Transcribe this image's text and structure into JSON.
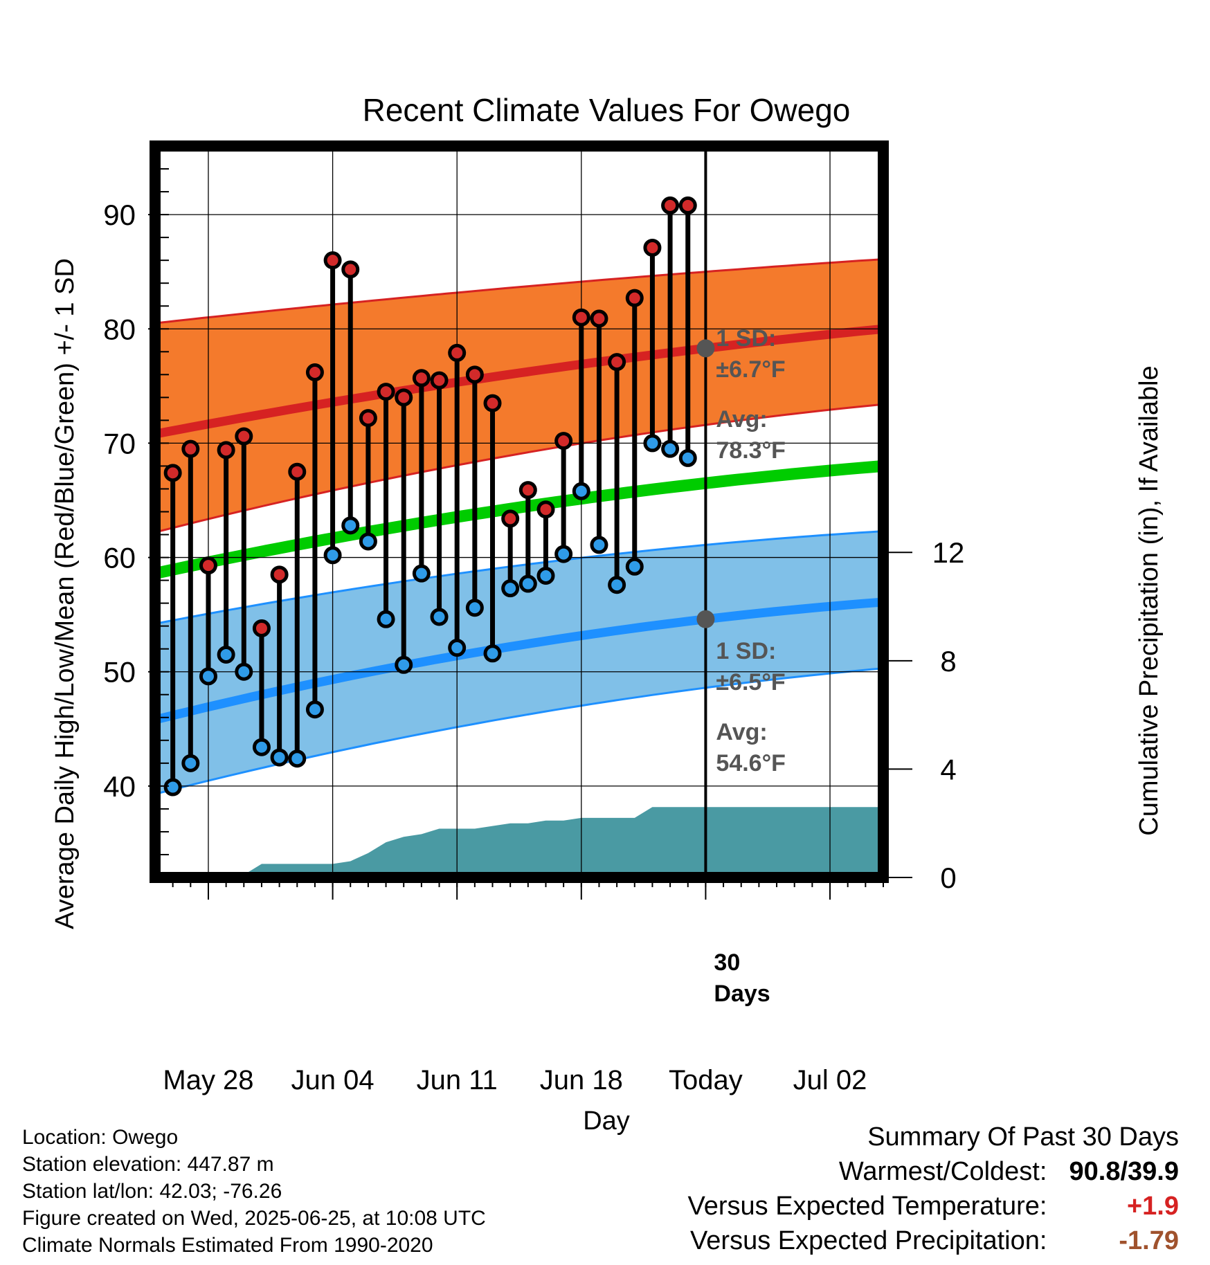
{
  "chart_data": {
    "type": "line",
    "title": "Recent Climate Values For Owego",
    "xlabel": "Day",
    "ylabel": "Average Daily High/Low/Mean (Red/Blue/Green) +/- 1 SD",
    "y2label": "Cumulative Precipitation (in), If Available",
    "ylim": [
      32,
      96
    ],
    "y2lim": [
      0,
      27
    ],
    "y_ticks": [
      "40",
      "50",
      "60",
      "70",
      "80",
      "90"
    ],
    "y2_ticks": [
      "0",
      "4",
      "8",
      "12"
    ],
    "x_ticks": [
      "May 28",
      "Jun 04",
      "Jun 11",
      "Jun 18",
      "Today",
      "Jul 02"
    ],
    "x_start": "2025-05-25",
    "x_end": "2025-07-05",
    "today": "2025-06-25",
    "grid": true,
    "dates": [
      "2025-05-26",
      "2025-05-27",
      "2025-05-28",
      "2025-05-29",
      "2025-05-30",
      "2025-05-31",
      "2025-06-01",
      "2025-06-02",
      "2025-06-03",
      "2025-06-04",
      "2025-06-05",
      "2025-06-06",
      "2025-06-07",
      "2025-06-08",
      "2025-06-09",
      "2025-06-10",
      "2025-06-11",
      "2025-06-12",
      "2025-06-13",
      "2025-06-14",
      "2025-06-15",
      "2025-06-16",
      "2025-06-17",
      "2025-06-18",
      "2025-06-19",
      "2025-06-20",
      "2025-06-21",
      "2025-06-22",
      "2025-06-23",
      "2025-06-24"
    ],
    "highs": [
      67.4,
      69.5,
      59.3,
      69.4,
      70.6,
      53.8,
      58.5,
      67.5,
      76.2,
      86.0,
      85.2,
      72.2,
      74.5,
      74.0,
      75.7,
      75.5,
      77.9,
      76.0,
      73.5,
      63.4,
      65.9,
      64.2,
      70.2,
      81.0,
      80.9,
      77.1,
      82.7,
      87.1,
      90.8,
      90.8
    ],
    "lows": [
      39.9,
      42.0,
      49.6,
      51.5,
      50.0,
      43.4,
      42.5,
      42.4,
      46.7,
      60.2,
      62.8,
      61.4,
      54.6,
      50.6,
      58.6,
      54.8,
      52.1,
      55.6,
      51.6,
      57.3,
      57.7,
      58.4,
      60.3,
      65.8,
      61.1,
      57.6,
      59.2,
      70.0,
      69.5,
      68.7
    ],
    "normals": {
      "dates": [
        "2025-05-25",
        "2025-06-25",
        "2025-07-05"
      ],
      "high_avg": [
        70.8,
        78.3,
        80.0
      ],
      "high_upper": [
        80.5,
        85.0,
        86.1
      ],
      "high_lower": [
        62.2,
        71.6,
        73.4
      ],
      "mean_avg": [
        58.6,
        66.5,
        68.0
      ],
      "low_avg": [
        45.8,
        54.6,
        56.1
      ],
      "low_upper": [
        54.2,
        61.1,
        62.3
      ],
      "low_lower": [
        39.3,
        48.6,
        50.3
      ]
    },
    "precip_dates": [
      "2025-05-26",
      "2025-05-27",
      "2025-05-28",
      "2025-05-29",
      "2025-05-30",
      "2025-05-31",
      "2025-06-01",
      "2025-06-02",
      "2025-06-03",
      "2025-06-04",
      "2025-06-05",
      "2025-06-06",
      "2025-06-07",
      "2025-06-08",
      "2025-06-09",
      "2025-06-10",
      "2025-06-11",
      "2025-06-12",
      "2025-06-13",
      "2025-06-14",
      "2025-06-15",
      "2025-06-16",
      "2025-06-17",
      "2025-06-18",
      "2025-06-19",
      "2025-06-20",
      "2025-06-21",
      "2025-06-22",
      "2025-06-23",
      "2025-06-24",
      "2025-06-25",
      "2025-07-05"
    ],
    "precip_cumulative": [
      0.0,
      0.0,
      0.0,
      0.0,
      0.1,
      0.5,
      0.5,
      0.5,
      0.5,
      0.5,
      0.6,
      0.9,
      1.3,
      1.5,
      1.6,
      1.8,
      1.8,
      1.8,
      1.9,
      2.0,
      2.0,
      2.1,
      2.1,
      2.2,
      2.2,
      2.2,
      2.2,
      2.6,
      2.6,
      2.6,
      2.6,
      2.6
    ],
    "annotations": {
      "high_sd_label": "1 SD:",
      "high_sd_value": "±6.7°F",
      "high_avg_label": "Avg:",
      "high_avg_value": "78.3°F",
      "low_sd_label": "1 SD:",
      "low_sd_value": "±6.5°F",
      "low_avg_label": "Avg:",
      "low_avg_value": "54.6°F",
      "window_count": "30",
      "window_unit": "Days"
    },
    "colors": {
      "high_band": "#f47a2c",
      "high_line": "#d62222",
      "mean_line": "#00cc00",
      "low_band": "#80c0e8",
      "low_line": "#1e90ff",
      "precip": "#4a9aa3",
      "high_dot": "#d22a2a",
      "low_dot": "#2f9be8",
      "marker": "#555555",
      "annotation": "#555555"
    }
  },
  "info": {
    "location": "Location: Owego",
    "elevation": "Station elevation: 447.87 m",
    "latlon": "Station lat/lon: 42.03; -76.26",
    "created": "Figure created on Wed, 2025-06-25, at 10:08 UTC",
    "normals": "Climate Normals Estimated From 1990-2020"
  },
  "summary": {
    "title": "Summary Of Past 30 Days",
    "warmest_label": "Warmest/Coldest:",
    "warmest_value": "90.8/39.9",
    "temp_label": "Versus Expected Temperature:",
    "temp_value": "+1.9",
    "temp_color": "#d62222",
    "precip_label": "Versus Expected Precipitation:",
    "precip_value": "-1.79",
    "precip_color": "#a0522d"
  }
}
